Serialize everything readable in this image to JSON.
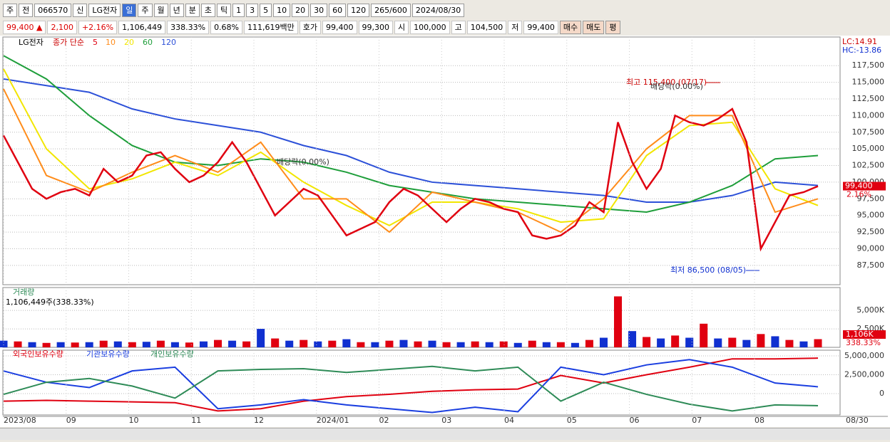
{
  "toolbar": {
    "items": [
      "주",
      "전",
      "066570",
      "신",
      "LG전자",
      "일",
      "주",
      "월",
      "년",
      "분",
      "초",
      "틱",
      "1",
      "3",
      "5",
      "10",
      "20",
      "30",
      "60",
      "120",
      "265/600",
      "2024/08/30"
    ]
  },
  "quote": {
    "items": [
      "99,400 ▲",
      "2,100",
      "+2.16%",
      "1,106,449",
      "338.33%",
      "0.68%",
      "111,619백만",
      "호가",
      "99,400",
      "99,300",
      "시",
      "100,000",
      "고",
      "104,500",
      "저",
      "99,400"
    ],
    "buttons": [
      "매수",
      "매도",
      "평"
    ]
  },
  "chart_data": [
    {
      "type": "line",
      "title": "LG전자",
      "legend_label": "종가 단순",
      "lc": "LC:14.91",
      "hc": "HC:-13.86",
      "last_price_label": "99,400",
      "last_change_label": "2.16%",
      "annotations": [
        "최고 115,400 (07/17)",
        "배당락(0.00%)",
        "배당락(0.00%)",
        "최저 86,500 (08/05)"
      ],
      "ylim": [
        84600,
        121800
      ],
      "grid": true,
      "yticks": [
        {
          "value": 87500,
          "label": "87,500"
        },
        {
          "value": 90000,
          "label": "90,000"
        },
        {
          "value": 92500,
          "label": "92,500"
        },
        {
          "value": 95000,
          "label": "95,000"
        },
        {
          "value": 97500,
          "label": "97,500"
        },
        {
          "value": 100000,
          "label": "100,000"
        },
        {
          "value": 102500,
          "label": "102,500"
        },
        {
          "value": 105000,
          "label": "105,000"
        },
        {
          "value": 107500,
          "label": "107,500"
        },
        {
          "value": 110000,
          "label": "110,000"
        },
        {
          "value": 112500,
          "label": "112,500"
        },
        {
          "value": 115000,
          "label": "115,000"
        },
        {
          "value": 117500,
          "label": "117,500"
        }
      ],
      "series": [
        {
          "name": "120",
          "color": "#2c50d8",
          "values": [
            115500,
            114500,
            113500,
            111000,
            109500,
            108500,
            107500,
            105500,
            104000,
            101500,
            100000,
            99500,
            99000,
            98500,
            98000,
            97000,
            97000,
            98000,
            100000,
            99500
          ]
        },
        {
          "name": "60",
          "color": "#1e9e3a",
          "values": [
            119000,
            115500,
            110000,
            105500,
            103000,
            102500,
            103500,
            103000,
            101500,
            99500,
            98500,
            97500,
            97000,
            96500,
            96000,
            95500,
            97000,
            99500,
            103500,
            104000
          ]
        },
        {
          "name": "20",
          "color": "#f2e600",
          "values": [
            117000,
            105000,
            99000,
            100500,
            103000,
            101000,
            104500,
            100000,
            96500,
            93500,
            97000,
            97000,
            96000,
            94000,
            94500,
            104000,
            108500,
            109000,
            99000,
            96500
          ]
        },
        {
          "name": "10",
          "color": "#ff8c1a",
          "values": [
            114000,
            101000,
            98500,
            101500,
            104000,
            101500,
            106000,
            97500,
            97500,
            92500,
            98500,
            97000,
            95500,
            92500,
            97500,
            105000,
            110000,
            110000,
            95500,
            97500
          ]
        },
        {
          "name": "5",
          "color": "#e00010",
          "values": [
            107000,
            103000,
            99000,
            97500,
            98500,
            99000,
            98000,
            102000,
            100000,
            101000,
            104000,
            104500,
            102000,
            100000,
            101000,
            103000,
            106000,
            103000,
            99000,
            95000,
            97000,
            99000,
            98000,
            95000,
            92000,
            93000,
            94000,
            97000,
            99000,
            98000,
            96000,
            94000,
            96000,
            97500,
            97000,
            96000,
            95500,
            92000,
            91500,
            92000,
            93500,
            97000,
            95500,
            109000,
            103000,
            99000,
            102000,
            110000,
            109000,
            108500,
            109500,
            111000,
            106000,
            90000,
            94000,
            98000,
            98500,
            99400
          ]
        }
      ]
    },
    {
      "type": "bar",
      "title": "거래량",
      "subtitle": "1,106,449주(338.33%)",
      "last_label": "1,106K",
      "last_ratio": "338.33%",
      "up_color": "#e00010",
      "down_color": "#1030d0",
      "ylim": [
        0,
        8000000
      ],
      "grid": true,
      "yticks": [
        {
          "value": 2500000,
          "label": "2,500K"
        },
        {
          "value": 5000000,
          "label": "5,000K"
        }
      ],
      "values": [
        900000,
        800000,
        700000,
        600000,
        700000,
        650000,
        700000,
        900000,
        800000,
        700000,
        750000,
        900000,
        700000,
        650000,
        800000,
        1000000,
        900000,
        800000,
        2500000,
        1200000,
        900000,
        1000000,
        800000,
        900000,
        1100000,
        700000,
        700000,
        900000,
        1000000,
        800000,
        900000,
        700000,
        700000,
        800000,
        700000,
        800000,
        600000,
        900000,
        700000,
        700000,
        600000,
        1000000,
        1300000,
        6900000,
        2200000,
        1400000,
        1200000,
        1600000,
        1300000,
        3200000,
        1200000,
        1300000,
        1000000,
        1800000,
        1500000,
        1000000,
        800000,
        1106449
      ]
    },
    {
      "type": "line",
      "ylim": [
        -2830000,
        5750000
      ],
      "grid": true,
      "yticks": [
        0,
        {
          "value": 2500000,
          "label": "2,500,000"
        },
        {
          "value": 5000000,
          "label": "5,000,000"
        }
      ],
      "series": [
        {
          "name": "외국인보유수량",
          "color": "#e00010",
          "values": [
            -1000000,
            -900000,
            -1000000,
            -1100000,
            -1200000,
            -2300000,
            -2000000,
            -1000000,
            -400000,
            -100000,
            300000,
            500000,
            600000,
            2400000,
            1400000,
            2500000,
            3500000,
            4600000,
            4600000,
            4700000
          ]
        },
        {
          "name": "기관보유수량",
          "color": "#1a3ee0",
          "values": [
            3000000,
            1500000,
            800000,
            3000000,
            3500000,
            -2000000,
            -1500000,
            -800000,
            -1500000,
            -2000000,
            -2500000,
            -1800000,
            -2400000,
            3500000,
            2500000,
            3800000,
            4500000,
            3500000,
            1400000,
            900000
          ]
        },
        {
          "name": "개인보유수량",
          "color": "#2e8b57",
          "values": [
            -100000,
            1500000,
            2000000,
            1000000,
            -600000,
            3000000,
            3200000,
            3300000,
            2800000,
            3200000,
            3600000,
            3000000,
            3500000,
            -1000000,
            1500000,
            -100000,
            -1400000,
            -2300000,
            -1500000,
            -1600000
          ]
        }
      ]
    }
  ],
  "x_axis": {
    "labels": [
      "2023/08",
      "09",
      "10",
      "11",
      "12",
      "2024/01",
      "02",
      "03",
      "04",
      "05",
      "06",
      "07",
      "08"
    ],
    "end_label": "08/30"
  }
}
